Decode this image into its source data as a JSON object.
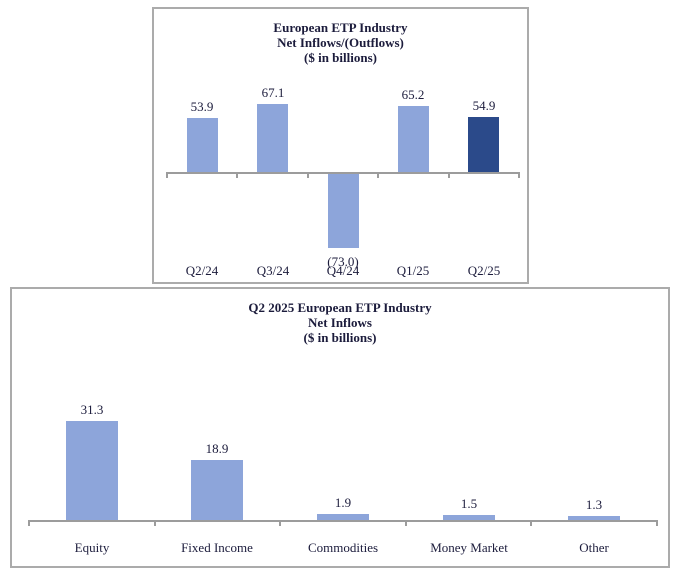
{
  "chart_data": [
    {
      "type": "bar",
      "title": "European ETP Industry Net Inflows/(Outflows) ($ in billions)",
      "title_lines": [
        "European ETP Industry",
        "Net Inflows/(Outflows)",
        "($ in billions)"
      ],
      "categories": [
        "Q2/24",
        "Q3/24",
        "Q4/24",
        "Q1/25",
        "Q2/25"
      ],
      "values": [
        53.9,
        67.1,
        -73.0,
        65.2,
        54.9
      ],
      "value_labels": [
        "53.9",
        "67.1",
        "(73.0)",
        "65.2",
        "54.9"
      ],
      "bar_colors": [
        "#8da5da",
        "#8da5da",
        "#8da5da",
        "#8da5da",
        "#2b4a8a"
      ],
      "xlabel": "",
      "ylabel": "",
      "ylim": [
        -85,
        75
      ],
      "grid": false,
      "legend": false,
      "axis_color": "#9c9c9c",
      "highlight_note": "Q2/25 bar shown in dark blue; Q4/24 is a negative (outflow) bar labeled in parentheses"
    },
    {
      "type": "bar",
      "title": "Q2 2025 European ETP Industry Net Inflows ($ in billions)",
      "title_lines": [
        "Q2 2025 European ETP Industry",
        "Net Inflows",
        "($ in billions)"
      ],
      "categories": [
        "Equity",
        "Fixed Income",
        "Commodities",
        "Money Market",
        "Other"
      ],
      "values": [
        31.3,
        18.9,
        1.9,
        1.5,
        1.3
      ],
      "value_labels": [
        "31.3",
        "18.9",
        "1.9",
        "1.5",
        "1.3"
      ],
      "bar_colors": [
        "#8da5da",
        "#8da5da",
        "#8da5da",
        "#8da5da",
        "#8da5da"
      ],
      "xlabel": "",
      "ylabel": "",
      "ylim": [
        0,
        35
      ],
      "grid": false,
      "legend": false,
      "axis_color": "#9c9c9c"
    }
  ],
  "colors": {
    "bar_light": "#8da5da",
    "bar_dark": "#2b4a8a",
    "axis": "#9c9c9c",
    "border": "#ababab",
    "text": "#1c1c3c",
    "background": "#ffffff"
  }
}
